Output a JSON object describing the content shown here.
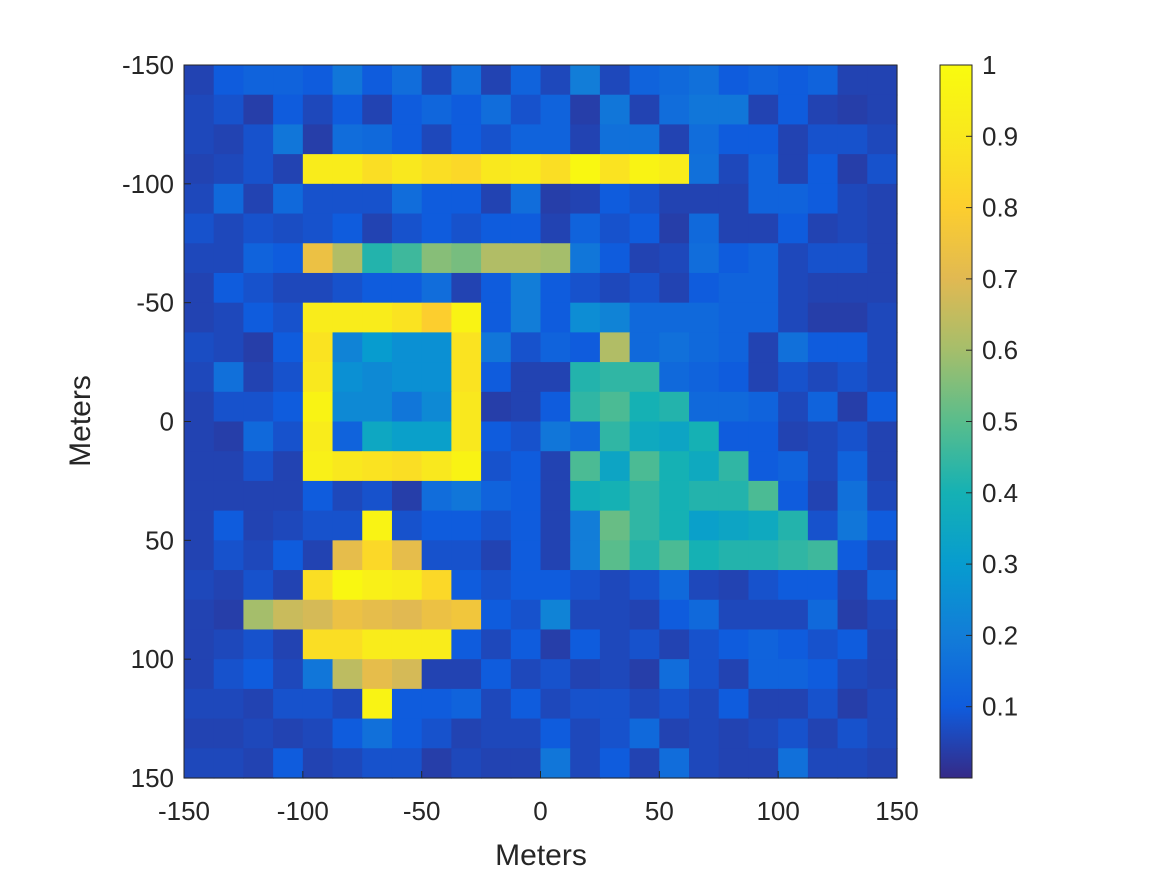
{
  "chart_data": {
    "type": "heatmap",
    "title": "",
    "xlabel": "Meters",
    "ylabel": "Meters",
    "xlim": [
      -150,
      150
    ],
    "ylim": [
      -150,
      150
    ],
    "y_direction": "down",
    "x_ticks": [
      -150,
      -100,
      -50,
      0,
      50,
      100,
      150
    ],
    "y_ticks": [
      -150,
      -100,
      -50,
      0,
      50,
      100,
      150
    ],
    "x_tick_labels": [
      "-150",
      "-100",
      "-50",
      "0",
      "50",
      "100",
      "150"
    ],
    "y_tick_labels": [
      "-150",
      "-100",
      "-50",
      "0",
      "50",
      "100",
      "150"
    ],
    "colormap": "parula",
    "colorbar": {
      "range": [
        0,
        1
      ],
      "ticks": [
        0.1,
        0.2,
        0.3,
        0.4,
        0.5,
        0.6,
        0.7,
        0.8,
        0.9,
        1
      ],
      "tick_labels": [
        "0.1",
        "0.2",
        "0.3",
        "0.4",
        "0.5",
        "0.6",
        "0.7",
        "0.8",
        "0.9",
        "1"
      ]
    },
    "grid": false,
    "cell_size": 12.5,
    "rows": 24,
    "cols": 24,
    "values": [
      [
        0.05,
        0.1,
        0.12,
        0.12,
        0.1,
        0.18,
        0.1,
        0.15,
        0.06,
        0.15,
        0.05,
        0.12,
        0.06,
        0.2,
        0.06,
        0.12,
        0.14,
        0.16,
        0.1,
        0.12,
        0.1,
        0.12,
        0.05,
        0.05
      ],
      [
        0.06,
        0.08,
        0.04,
        0.1,
        0.06,
        0.1,
        0.05,
        0.1,
        0.13,
        0.1,
        0.15,
        0.08,
        0.12,
        0.04,
        0.18,
        0.05,
        0.15,
        0.18,
        0.18,
        0.05,
        0.1,
        0.05,
        0.04,
        0.05
      ],
      [
        0.06,
        0.05,
        0.08,
        0.18,
        0.04,
        0.15,
        0.14,
        0.1,
        0.06,
        0.1,
        0.08,
        0.12,
        0.12,
        0.05,
        0.16,
        0.16,
        0.05,
        0.15,
        0.1,
        0.1,
        0.05,
        0.08,
        0.08,
        0.06
      ],
      [
        0.05,
        0.06,
        0.08,
        0.05,
        0.92,
        0.92,
        0.86,
        0.9,
        0.86,
        0.84,
        0.9,
        0.92,
        0.86,
        0.98,
        0.88,
        0.96,
        0.92,
        0.16,
        0.06,
        0.12,
        0.05,
        0.1,
        0.04,
        0.08
      ],
      [
        0.06,
        0.14,
        0.05,
        0.14,
        0.08,
        0.08,
        0.08,
        0.15,
        0.1,
        0.1,
        0.05,
        0.15,
        0.04,
        0.05,
        0.1,
        0.08,
        0.05,
        0.05,
        0.05,
        0.12,
        0.12,
        0.1,
        0.06,
        0.05
      ],
      [
        0.08,
        0.06,
        0.08,
        0.07,
        0.08,
        0.1,
        0.05,
        0.08,
        0.1,
        0.08,
        0.1,
        0.1,
        0.05,
        0.12,
        0.08,
        0.1,
        0.04,
        0.14,
        0.05,
        0.05,
        0.1,
        0.05,
        0.06,
        0.05
      ],
      [
        0.06,
        0.06,
        0.12,
        0.1,
        0.74,
        0.62,
        0.42,
        0.46,
        0.56,
        0.54,
        0.62,
        0.62,
        0.6,
        0.18,
        0.1,
        0.05,
        0.06,
        0.15,
        0.1,
        0.12,
        0.06,
        0.08,
        0.08,
        0.05
      ],
      [
        0.05,
        0.1,
        0.08,
        0.06,
        0.06,
        0.08,
        0.1,
        0.1,
        0.15,
        0.05,
        0.1,
        0.2,
        0.1,
        0.08,
        0.06,
        0.08,
        0.05,
        0.1,
        0.12,
        0.12,
        0.06,
        0.05,
        0.05,
        0.05
      ],
      [
        0.05,
        0.06,
        0.1,
        0.08,
        0.92,
        0.92,
        0.92,
        0.88,
        0.8,
        0.96,
        0.1,
        0.2,
        0.1,
        0.25,
        0.22,
        0.14,
        0.14,
        0.14,
        0.12,
        0.12,
        0.06,
        0.04,
        0.04,
        0.06
      ],
      [
        0.07,
        0.06,
        0.04,
        0.1,
        0.88,
        0.22,
        0.3,
        0.26,
        0.26,
        0.88,
        0.18,
        0.08,
        0.12,
        0.1,
        0.62,
        0.14,
        0.16,
        0.14,
        0.12,
        0.05,
        0.16,
        0.1,
        0.1,
        0.06
      ],
      [
        0.06,
        0.16,
        0.05,
        0.08,
        0.9,
        0.26,
        0.24,
        0.26,
        0.26,
        0.88,
        0.1,
        0.05,
        0.05,
        0.42,
        0.44,
        0.44,
        0.14,
        0.12,
        0.1,
        0.05,
        0.08,
        0.06,
        0.08,
        0.06
      ],
      [
        0.05,
        0.08,
        0.08,
        0.1,
        0.96,
        0.24,
        0.24,
        0.18,
        0.24,
        0.9,
        0.04,
        0.05,
        0.1,
        0.44,
        0.48,
        0.4,
        0.42,
        0.14,
        0.14,
        0.12,
        0.06,
        0.12,
        0.04,
        0.1
      ],
      [
        0.05,
        0.04,
        0.14,
        0.08,
        0.92,
        0.12,
        0.35,
        0.32,
        0.32,
        0.9,
        0.1,
        0.08,
        0.18,
        0.14,
        0.44,
        0.36,
        0.34,
        0.4,
        0.1,
        0.1,
        0.05,
        0.06,
        0.08,
        0.05
      ],
      [
        0.05,
        0.05,
        0.08,
        0.05,
        0.94,
        0.9,
        0.88,
        0.86,
        0.9,
        0.96,
        0.08,
        0.1,
        0.05,
        0.48,
        0.34,
        0.48,
        0.4,
        0.36,
        0.44,
        0.1,
        0.12,
        0.06,
        0.12,
        0.05
      ],
      [
        0.05,
        0.05,
        0.05,
        0.05,
        0.1,
        0.06,
        0.08,
        0.04,
        0.15,
        0.18,
        0.12,
        0.1,
        0.05,
        0.38,
        0.4,
        0.44,
        0.4,
        0.42,
        0.42,
        0.48,
        0.1,
        0.05,
        0.16,
        0.06
      ],
      [
        0.05,
        0.1,
        0.05,
        0.06,
        0.08,
        0.08,
        0.96,
        0.08,
        0.1,
        0.1,
        0.08,
        0.1,
        0.05,
        0.2,
        0.52,
        0.44,
        0.4,
        0.32,
        0.34,
        0.36,
        0.42,
        0.08,
        0.18,
        0.1
      ],
      [
        0.05,
        0.08,
        0.06,
        0.1,
        0.05,
        0.72,
        0.84,
        0.72,
        0.08,
        0.08,
        0.05,
        0.1,
        0.05,
        0.2,
        0.5,
        0.42,
        0.48,
        0.4,
        0.42,
        0.42,
        0.44,
        0.46,
        0.1,
        0.06
      ],
      [
        0.06,
        0.05,
        0.08,
        0.05,
        0.86,
        0.98,
        0.94,
        0.92,
        0.84,
        0.1,
        0.08,
        0.1,
        0.1,
        0.08,
        0.06,
        0.08,
        0.14,
        0.06,
        0.05,
        0.08,
        0.1,
        0.1,
        0.05,
        0.12
      ],
      [
        0.05,
        0.04,
        0.6,
        0.66,
        0.68,
        0.74,
        0.72,
        0.7,
        0.74,
        0.76,
        0.1,
        0.08,
        0.22,
        0.06,
        0.06,
        0.05,
        0.1,
        0.14,
        0.06,
        0.06,
        0.06,
        0.14,
        0.04,
        0.06
      ],
      [
        0.05,
        0.06,
        0.08,
        0.05,
        0.86,
        0.86,
        0.92,
        0.92,
        0.92,
        0.1,
        0.06,
        0.1,
        0.04,
        0.1,
        0.06,
        0.08,
        0.05,
        0.08,
        0.1,
        0.12,
        0.1,
        0.08,
        0.1,
        0.05
      ],
      [
        0.05,
        0.08,
        0.1,
        0.06,
        0.18,
        0.64,
        0.72,
        0.68,
        0.05,
        0.05,
        0.1,
        0.06,
        0.08,
        0.05,
        0.06,
        0.04,
        0.15,
        0.08,
        0.05,
        0.12,
        0.12,
        0.1,
        0.06,
        0.05
      ],
      [
        0.06,
        0.06,
        0.05,
        0.08,
        0.08,
        0.06,
        0.96,
        0.1,
        0.1,
        0.12,
        0.06,
        0.1,
        0.06,
        0.08,
        0.08,
        0.06,
        0.08,
        0.06,
        0.1,
        0.05,
        0.05,
        0.08,
        0.04,
        0.06
      ],
      [
        0.05,
        0.05,
        0.06,
        0.05,
        0.06,
        0.1,
        0.16,
        0.1,
        0.08,
        0.05,
        0.06,
        0.06,
        0.1,
        0.06,
        0.08,
        0.14,
        0.05,
        0.06,
        0.05,
        0.06,
        0.08,
        0.05,
        0.08,
        0.06
      ],
      [
        0.06,
        0.06,
        0.05,
        0.1,
        0.05,
        0.06,
        0.08,
        0.08,
        0.04,
        0.06,
        0.05,
        0.05,
        0.18,
        0.06,
        0.1,
        0.05,
        0.15,
        0.06,
        0.05,
        0.05,
        0.16,
        0.06,
        0.06,
        0.05
      ]
    ]
  }
}
